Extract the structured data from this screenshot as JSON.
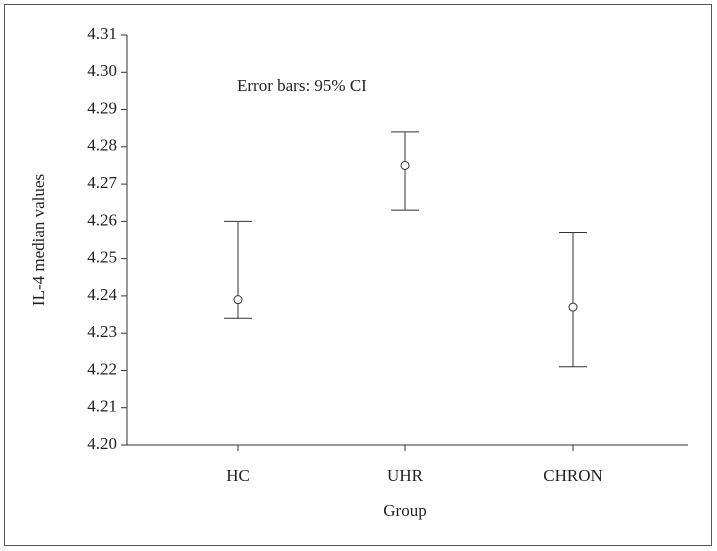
{
  "chart_data": {
    "type": "errorbar",
    "annotation": "Error bars: 95% CI",
    "y_label": "IL-4 median values",
    "x_label": "Group",
    "categories": [
      "HC",
      "UHR",
      "CHRON"
    ],
    "values": [
      4.239,
      4.275,
      4.237
    ],
    "ci_lower": [
      4.234,
      4.263,
      4.221
    ],
    "ci_upper": [
      4.26,
      4.284,
      4.257
    ],
    "color": "#333333",
    "ylim": [
      4.2,
      4.31
    ],
    "yticks": [
      {
        "value": 4.2,
        "label": "4.20"
      },
      4.21,
      4.22,
      4.23,
      4.24,
      4.25,
      4.26,
      4.27,
      4.28,
      4.29,
      {
        "value": 4.3,
        "label": "4.30"
      },
      4.31
    ]
  }
}
